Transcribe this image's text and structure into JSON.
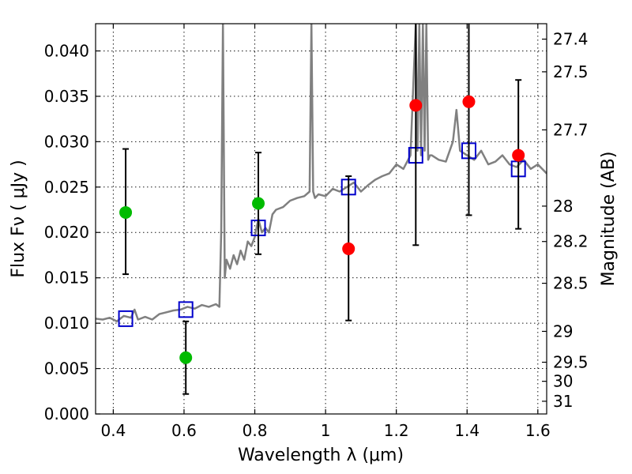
{
  "chart_data": {
    "type": "scatter",
    "xlabel": "Wavelength  λ (μm)",
    "ylabel": "Flux  Fν  ( μJy )",
    "y2label": "Magnitude (AB)",
    "xlim": [
      0.35,
      1.625
    ],
    "ylim": [
      0.0,
      0.043
    ],
    "grid": true,
    "x_ticks": [
      0.4,
      0.6,
      0.8,
      1.0,
      1.2,
      1.4,
      1.6
    ],
    "x_tick_labels": [
      "0.4",
      "0.6",
      "0.8",
      "1",
      "1.2",
      "1.4",
      "1.6"
    ],
    "y_ticks": [
      0.0,
      0.005,
      0.01,
      0.015,
      0.02,
      0.025,
      0.03,
      0.035,
      0.04
    ],
    "y_tick_labels": [
      "0.000",
      "0.005",
      "0.010",
      "0.015",
      "0.020",
      "0.025",
      "0.030",
      "0.035",
      "0.040"
    ],
    "y2_ticks": [
      {
        "flux": 0.0413,
        "label": "27.4"
      },
      {
        "flux": 0.0377,
        "label": "27.5"
      },
      {
        "flux": 0.0313,
        "label": "27.7"
      },
      {
        "flux": 0.0229,
        "label": "28"
      },
      {
        "flux": 0.019,
        "label": "28.2"
      },
      {
        "flux": 0.0144,
        "label": "28.5"
      },
      {
        "flux": 0.0091,
        "label": "29"
      },
      {
        "flux": 0.0057,
        "label": "29.5"
      },
      {
        "flux": 0.0036,
        "label": "30"
      },
      {
        "flux": 0.0014,
        "label": "31"
      }
    ],
    "series": [
      {
        "kind": "spectrum",
        "color": "#808080",
        "x": [
          0.35,
          0.37,
          0.39,
          0.41,
          0.43,
          0.45,
          0.46,
          0.47,
          0.49,
          0.51,
          0.53,
          0.55,
          0.57,
          0.59,
          0.61,
          0.63,
          0.65,
          0.67,
          0.69,
          0.7,
          0.705,
          0.71,
          0.715,
          0.72,
          0.73,
          0.74,
          0.75,
          0.76,
          0.77,
          0.78,
          0.79,
          0.8,
          0.81,
          0.82,
          0.83,
          0.84,
          0.85,
          0.86,
          0.88,
          0.9,
          0.92,
          0.94,
          0.955,
          0.96,
          0.965,
          0.97,
          0.98,
          1.0,
          1.02,
          1.04,
          1.06,
          1.08,
          1.1,
          1.12,
          1.14,
          1.16,
          1.18,
          1.2,
          1.22,
          1.24,
          1.255,
          1.26,
          1.265,
          1.27,
          1.275,
          1.28,
          1.285,
          1.29,
          1.295,
          1.3,
          1.32,
          1.34,
          1.36,
          1.37,
          1.38,
          1.4,
          1.42,
          1.44,
          1.46,
          1.48,
          1.5,
          1.52,
          1.54,
          1.56,
          1.58,
          1.6,
          1.625
        ],
        "y": [
          0.0105,
          0.0104,
          0.0106,
          0.0102,
          0.0108,
          0.0106,
          0.0115,
          0.0104,
          0.0107,
          0.0104,
          0.011,
          0.0112,
          0.0114,
          0.0115,
          0.0118,
          0.0116,
          0.012,
          0.0118,
          0.0121,
          0.0118,
          0.02,
          0.043,
          0.015,
          0.017,
          0.016,
          0.0175,
          0.0165,
          0.018,
          0.017,
          0.019,
          0.0185,
          0.0195,
          0.0215,
          0.02,
          0.0205,
          0.02,
          0.022,
          0.0225,
          0.0228,
          0.0235,
          0.0238,
          0.024,
          0.0245,
          0.043,
          0.0245,
          0.0238,
          0.0242,
          0.024,
          0.0248,
          0.0245,
          0.025,
          0.0255,
          0.0245,
          0.0252,
          0.0258,
          0.0262,
          0.0265,
          0.0275,
          0.027,
          0.0285,
          0.043,
          0.029,
          0.043,
          0.0285,
          0.043,
          0.029,
          0.043,
          0.028,
          0.0285,
          0.0285,
          0.028,
          0.0278,
          0.03,
          0.0335,
          0.029,
          0.0285,
          0.028,
          0.029,
          0.0275,
          0.0278,
          0.0285,
          0.0275,
          0.0272,
          0.028,
          0.027,
          0.0275,
          0.0265
        ]
      },
      {
        "kind": "model-squares",
        "color": "#0000cc",
        "x": [
          0.435,
          0.605,
          0.81,
          1.065,
          1.255,
          1.405,
          1.545
        ],
        "y": [
          0.0105,
          0.0115,
          0.0205,
          0.025,
          0.0285,
          0.029,
          0.027
        ]
      },
      {
        "kind": "detections",
        "color": "#00bb00",
        "x": [
          0.435,
          0.605,
          0.81
        ],
        "y": [
          0.0222,
          0.0062,
          0.0232
        ],
        "yerr_low": [
          0.0154,
          0.0022,
          0.0176
        ],
        "yerr_high": [
          0.0292,
          0.0102,
          0.0288
        ]
      },
      {
        "kind": "detections",
        "color": "#ff0000",
        "x": [
          1.065,
          1.255,
          1.405,
          1.545
        ],
        "y": [
          0.0182,
          0.034,
          0.0344,
          0.0285
        ],
        "yerr_low": [
          0.0103,
          0.0186,
          0.0219,
          0.0204
        ],
        "yerr_high": [
          0.0262,
          0.043,
          0.043,
          0.0368
        ]
      }
    ]
  }
}
